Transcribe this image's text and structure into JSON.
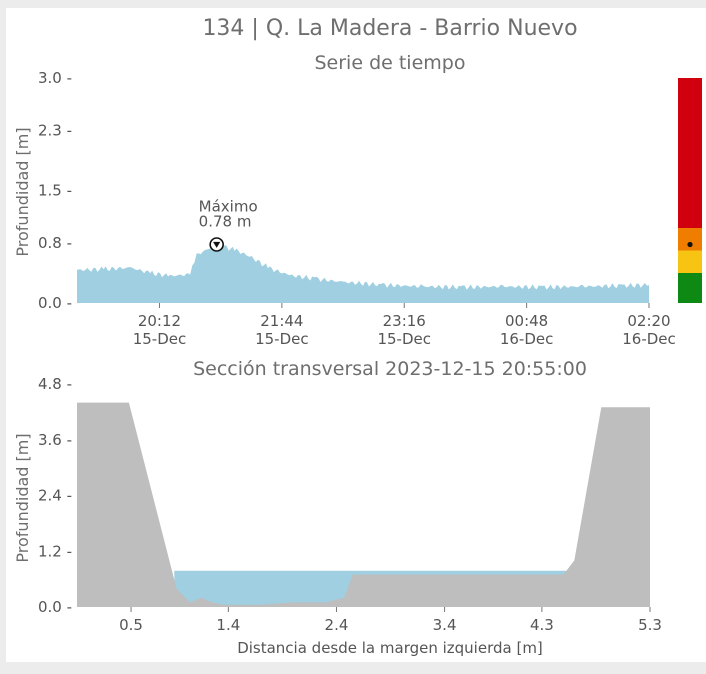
{
  "header": {
    "title": "134 | Q. La Madera - Barrio Nuevo"
  },
  "chart_data": [
    {
      "type": "area",
      "title": "Serie de tiempo",
      "ylabel": "Profundidad [m]",
      "xlabel": "",
      "ylim": [
        0,
        3.0
      ],
      "yticks": [
        "3.0",
        "2.3",
        "1.5",
        "0.8",
        "0.0"
      ],
      "ytick_values": [
        3.0,
        2.3,
        1.5,
        0.8,
        0.0
      ],
      "xticks": [
        {
          "line1": "20:12",
          "line2": "15-Dec"
        },
        {
          "line1": "21:44",
          "line2": "15-Dec"
        },
        {
          "line1": "23:16",
          "line2": "15-Dec"
        },
        {
          "line1": "00:48",
          "line2": "16-Dec"
        },
        {
          "line1": "02:20",
          "line2": "16-Dec"
        }
      ],
      "x_start": "2023-12-15 19:10",
      "x_end": "2023-12-16 02:20",
      "series": [
        {
          "color": "#9fcfe0",
          "x": [
            "2023-12-15 19:10",
            "2023-12-15 19:30",
            "2023-12-15 19:50",
            "2023-12-15 20:05",
            "2023-12-15 20:20",
            "2023-12-15 20:35",
            "2023-12-15 20:40",
            "2023-12-15 20:55",
            "2023-12-15 21:10",
            "2023-12-15 21:20",
            "2023-12-15 21:35",
            "2023-12-15 21:50",
            "2023-12-15 22:10",
            "2023-12-15 22:30",
            "2023-12-15 23:00",
            "2023-12-15 23:30",
            "2023-12-16 00:00",
            "2023-12-16 00:30",
            "2023-12-16 01:00",
            "2023-12-16 01:30",
            "2023-12-16 02:00",
            "2023-12-16 02:20"
          ],
          "y": [
            0.44,
            0.45,
            0.47,
            0.4,
            0.36,
            0.38,
            0.64,
            0.78,
            0.7,
            0.62,
            0.46,
            0.37,
            0.32,
            0.28,
            0.24,
            0.22,
            0.21,
            0.22,
            0.21,
            0.22,
            0.23,
            0.24
          ]
        }
      ],
      "annotation": {
        "label": "Máximo",
        "value": "0.78 m",
        "x": "2023-12-15 20:55",
        "y": 0.78
      },
      "alert_bar": {
        "colors": [
          "#d0000f",
          "#ef7d00",
          "#f8c414",
          "#0e8a14"
        ],
        "bands": [
          [
            1.0,
            3.0
          ],
          [
            0.7,
            1.0
          ],
          [
            0.4,
            0.7
          ],
          [
            0.0,
            0.4
          ]
        ],
        "current_level": 0.78
      }
    },
    {
      "type": "area",
      "title": "Sección transversal 2023-12-15 20:55:00",
      "ylabel": "Profundidad [m]",
      "xlabel": "Distancia desde la margen izquierda [m]",
      "xlim": [
        0,
        5.3
      ],
      "ylim": [
        0,
        4.8
      ],
      "xticks": [
        "0.5",
        "1.4",
        "2.4",
        "3.4",
        "4.3",
        "5.3"
      ],
      "xtick_values": [
        0.5,
        1.4,
        2.4,
        3.4,
        4.3,
        5.3
      ],
      "yticks": [
        "4.8",
        "3.6",
        "2.4",
        "1.2",
        "0.0"
      ],
      "ytick_values": [
        4.8,
        3.6,
        2.4,
        1.2,
        0.0
      ],
      "water_level": 0.78,
      "series": [
        {
          "color": "#bebebe",
          "x": [
            0,
            0.48,
            0.92,
            1.0,
            1.05,
            1.15,
            1.25,
            1.35,
            1.5,
            1.7,
            2.0,
            2.3,
            2.47,
            2.55,
            4.5,
            4.6,
            4.85,
            5.3
          ],
          "y": [
            4.4,
            4.4,
            0.4,
            0.2,
            0.1,
            0.2,
            0.1,
            0.05,
            0.05,
            0.05,
            0.1,
            0.1,
            0.2,
            0.7,
            0.7,
            1.0,
            4.3,
            4.3
          ]
        }
      ]
    }
  ]
}
